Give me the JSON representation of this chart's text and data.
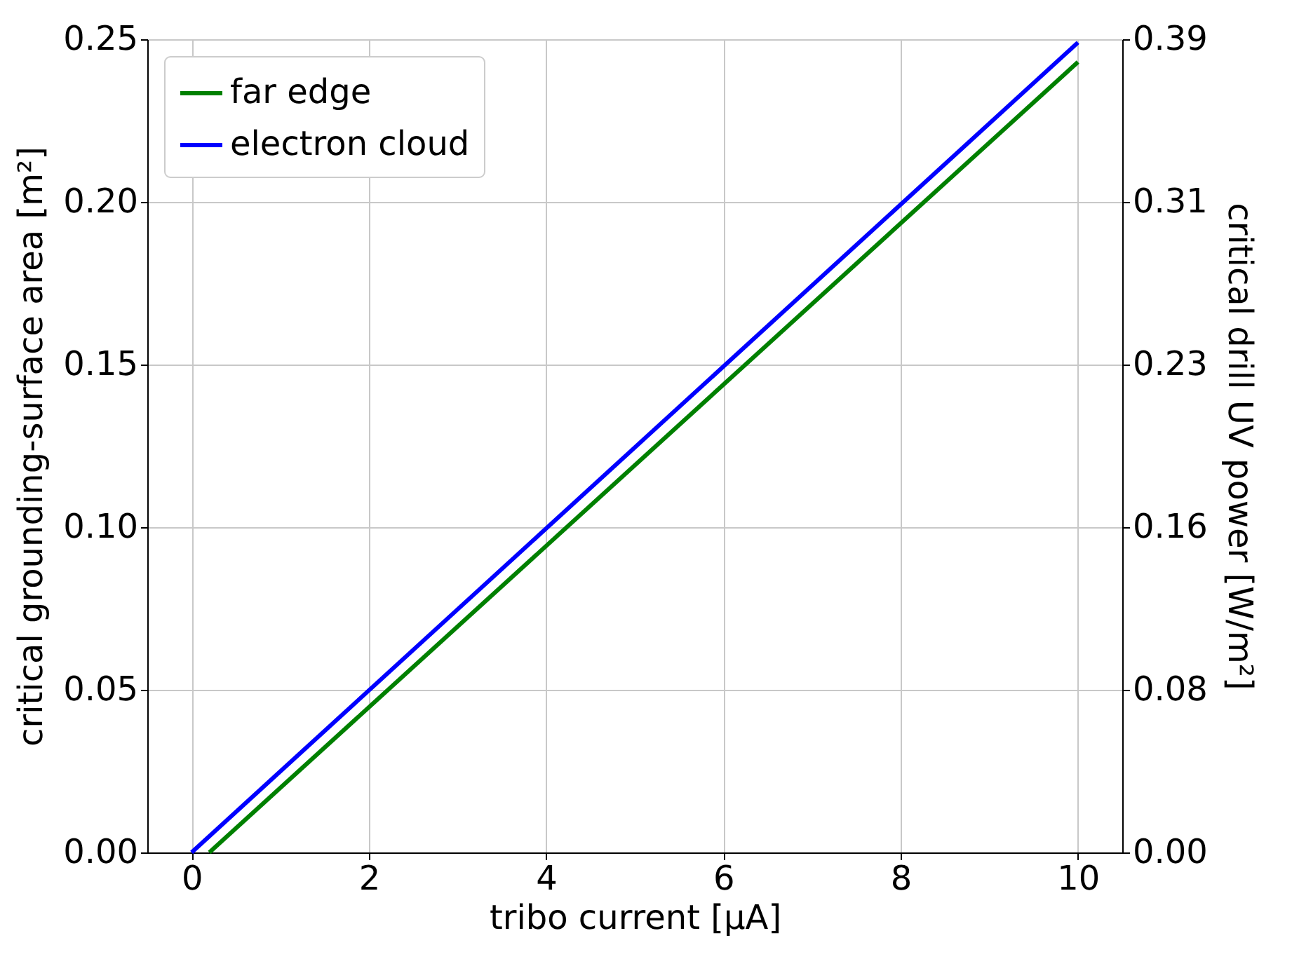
{
  "chart_data": {
    "type": "line",
    "xlabel": "tribo current [μA]",
    "ylabel": "critical grounding-surface area [m²]",
    "y2label": "critical drill UV power [W/m²]",
    "xlim": [
      -0.5,
      10.5
    ],
    "xticks": [
      0,
      2,
      4,
      6,
      8,
      10
    ],
    "ylim": [
      0,
      0.25
    ],
    "yticks": [
      {
        "value": 0,
        "label": "0.00"
      },
      {
        "value": 0.05,
        "label": "0.05"
      },
      {
        "value": 0.1,
        "label": "0.10"
      },
      {
        "value": 0.15,
        "label": "0.15"
      },
      {
        "value": 0.2,
        "label": "0.20"
      },
      {
        "value": 0.25,
        "label": "0.25"
      }
    ],
    "y2lim": [
      0,
      0.39
    ],
    "y2ticks": [
      {
        "value": 0,
        "label": "0.00"
      },
      {
        "value": 0.078,
        "label": "0.08"
      },
      {
        "value": 0.156,
        "label": "0.16"
      },
      {
        "value": 0.234,
        "label": "0.23"
      },
      {
        "value": 0.312,
        "label": "0.31"
      },
      {
        "value": 0.39,
        "label": "0.39"
      }
    ],
    "grid": true,
    "legend": "top left",
    "line_style": "solid",
    "marker": "none",
    "series": [
      {
        "name": "far edge",
        "color": "#008000",
        "x": [
          0.2,
          10
        ],
        "values": [
          0,
          0.243
        ]
      },
      {
        "name": "electron cloud",
        "color": "#0000ff",
        "x": [
          0,
          10
        ],
        "values": [
          0,
          0.249
        ]
      }
    ]
  }
}
